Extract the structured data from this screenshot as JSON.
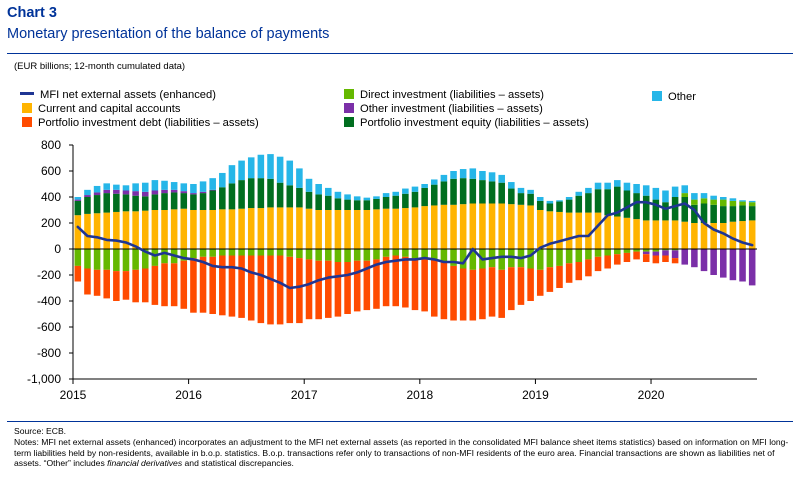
{
  "header": {
    "label": "Chart 3",
    "title": "Monetary presentation of the balance of payments",
    "unit_note": "(EUR billions; 12-month cumulated data)"
  },
  "legend": {
    "line": "MFI net external assets (enhanced)",
    "current": "Current and capital accounts",
    "portdebt": "Portfolio investment debt (liabilities – assets)",
    "direct": "Direct investment (liabilities – assets)",
    "otherinv": "Other investment (liabilities – assets)",
    "porteq": "Portfolio investment equity (liabilities – assets)",
    "other": "Other"
  },
  "footer": {
    "source": "Source: ECB.",
    "notes_1": "Notes: MFI net external assets (enhanced) incorporates an adjustment to the MFI net external assets (as reported in the consolidated MFI balance sheet items statistics) based on information on MFI long-term liabilities held by non-residents, available in b.o.p. statistics. B.o.p. transactions refer only to transactions of non-MFI residents of the euro area. Financial transactions are shown as liabilities net of assets. “Other” includes ",
    "notes_em": "financial derivatives",
    "notes_2": " and statistical discrepancies."
  },
  "colors": {
    "line": "#1f3593",
    "current": "#ffb400",
    "portdebt": "#ff4b00",
    "direct": "#65b800",
    "otherinv": "#7b2fa8",
    "porteq": "#006e1f",
    "other": "#26b6e8"
  },
  "chart_data": {
    "type": "bar",
    "stacked": true,
    "ylim": [
      -1000,
      800
    ],
    "yticks": [
      -1000,
      -800,
      -600,
      -400,
      -200,
      0,
      200,
      400,
      600,
      800
    ],
    "ytick_labels": [
      "-1,000",
      "-800",
      "-600",
      "-400",
      "-200",
      "0",
      "200",
      "400",
      "600",
      "800"
    ],
    "xtick_labels": [
      "2015",
      "2016",
      "2017",
      "2018",
      "2019",
      "2020"
    ],
    "months": [
      "2015-01",
      "2015-02",
      "2015-03",
      "2015-04",
      "2015-05",
      "2015-06",
      "2015-07",
      "2015-08",
      "2015-09",
      "2015-10",
      "2015-11",
      "2015-12",
      "2016-01",
      "2016-02",
      "2016-03",
      "2016-04",
      "2016-05",
      "2016-06",
      "2016-07",
      "2016-08",
      "2016-09",
      "2016-10",
      "2016-11",
      "2016-12",
      "2017-01",
      "2017-02",
      "2017-03",
      "2017-04",
      "2017-05",
      "2017-06",
      "2017-07",
      "2017-08",
      "2017-09",
      "2017-10",
      "2017-11",
      "2017-12",
      "2018-01",
      "2018-02",
      "2018-03",
      "2018-04",
      "2018-05",
      "2018-06",
      "2018-07",
      "2018-08",
      "2018-09",
      "2018-10",
      "2018-11",
      "2018-12",
      "2019-01",
      "2019-02",
      "2019-03",
      "2019-04",
      "2019-05",
      "2019-06",
      "2019-07",
      "2019-08",
      "2019-09",
      "2019-10",
      "2019-11",
      "2019-12",
      "2020-01",
      "2020-02",
      "2020-03",
      "2020-04",
      "2020-05",
      "2020-06",
      "2020-07",
      "2020-08",
      "2020-09",
      "2020-10",
      "2020-11"
    ],
    "series": [
      {
        "name": "Current and capital accounts",
        "key": "current",
        "values": [
          260,
          270,
          275,
          280,
          285,
          290,
          290,
          295,
          300,
          300,
          305,
          310,
          300,
          300,
          300,
          305,
          305,
          310,
          315,
          315,
          320,
          320,
          320,
          320,
          310,
          300,
          300,
          300,
          300,
          300,
          300,
          305,
          310,
          310,
          315,
          320,
          330,
          335,
          340,
          340,
          345,
          350,
          350,
          350,
          350,
          345,
          340,
          335,
          300,
          290,
          285,
          280,
          280,
          280,
          280,
          260,
          250,
          240,
          230,
          220,
          220,
          220,
          220,
          210,
          200,
          200,
          200,
          200,
          210,
          215,
          220
        ]
      },
      {
        "name": "Portfolio investment equity (liabilities – assets)",
        "key": "porteq",
        "values": [
          110,
          130,
          140,
          150,
          140,
          130,
          120,
          110,
          120,
          130,
          130,
          120,
          120,
          130,
          150,
          170,
          200,
          220,
          230,
          230,
          220,
          190,
          170,
          150,
          130,
          120,
          110,
          90,
          80,
          75,
          75,
          80,
          90,
          100,
          110,
          120,
          140,
          160,
          180,
          200,
          200,
          190,
          180,
          170,
          160,
          120,
          90,
          90,
          70,
          60,
          80,
          100,
          130,
          150,
          180,
          200,
          230,
          210,
          200,
          190,
          160,
          140,
          180,
          190,
          140,
          150,
          140,
          130,
          120,
          120,
          110
        ]
      },
      {
        "name": "Direct investment (liabilities – assets)",
        "key": "direct",
        "values": [
          -130,
          -150,
          -160,
          -160,
          -170,
          -170,
          -160,
          -150,
          -130,
          -110,
          -110,
          -90,
          -70,
          -60,
          -60,
          -50,
          -50,
          -50,
          -50,
          -50,
          -50,
          -50,
          -60,
          -70,
          -80,
          -90,
          -90,
          -100,
          -100,
          -90,
          -90,
          -80,
          -60,
          -50,
          -60,
          -70,
          -70,
          -80,
          -100,
          -130,
          -150,
          -160,
          -150,
          -140,
          -160,
          -140,
          -140,
          -150,
          -160,
          -140,
          -130,
          -110,
          -100,
          -80,
          -60,
          -50,
          -40,
          -30,
          -20,
          -20,
          -20,
          -10,
          -10,
          30,
          40,
          40,
          40,
          50,
          40,
          30,
          30
        ]
      },
      {
        "name": "Other investment (liabilities – assets)",
        "key": "otherinv",
        "values": [
          10,
          15,
          20,
          25,
          30,
          30,
          35,
          35,
          30,
          25,
          20,
          15,
          10,
          10,
          5,
          0,
          0,
          0,
          0,
          0,
          0,
          0,
          0,
          0,
          0,
          0,
          0,
          0,
          0,
          0,
          0,
          0,
          0,
          0,
          0,
          0,
          0,
          0,
          0,
          0,
          0,
          0,
          0,
          0,
          0,
          0,
          0,
          0,
          0,
          0,
          0,
          0,
          0,
          0,
          0,
          0,
          0,
          0,
          0,
          -20,
          -30,
          -40,
          -60,
          -120,
          -140,
          -170,
          -200,
          -220,
          -240,
          -250,
          -280
        ]
      },
      {
        "name": "Portfolio investment debt (liabilities – assets)",
        "key": "portdebt",
        "values": [
          -120,
          -200,
          -200,
          -220,
          -230,
          -220,
          -250,
          -260,
          -300,
          -330,
          -330,
          -370,
          -420,
          -430,
          -440,
          -460,
          -470,
          -480,
          -500,
          -520,
          -530,
          -530,
          -510,
          -500,
          -460,
          -450,
          -440,
          -420,
          -400,
          -390,
          -380,
          -380,
          -380,
          -390,
          -390,
          -400,
          -410,
          -440,
          -440,
          -420,
          -400,
          -390,
          -390,
          -380,
          -370,
          -330,
          -290,
          -250,
          -200,
          -190,
          -170,
          -150,
          -140,
          -130,
          -110,
          -100,
          -80,
          -70,
          -60,
          -60,
          -60,
          -50,
          -40,
          0,
          0,
          0,
          0,
          0,
          0,
          0,
          0
        ]
      },
      {
        "name": "Other",
        "key": "other",
        "values": [
          20,
          40,
          50,
          50,
          40,
          40,
          60,
          70,
          80,
          70,
          60,
          60,
          70,
          80,
          90,
          110,
          140,
          150,
          160,
          180,
          190,
          200,
          190,
          150,
          100,
          80,
          60,
          50,
          40,
          30,
          20,
          20,
          30,
          30,
          40,
          40,
          30,
          40,
          50,
          60,
          70,
          80,
          70,
          70,
          60,
          50,
          40,
          30,
          30,
          20,
          10,
          20,
          30,
          40,
          50,
          50,
          50,
          60,
          70,
          80,
          90,
          90,
          80,
          60,
          50,
          40,
          30,
          20,
          20,
          10,
          10
        ]
      }
    ],
    "line_series": {
      "name": "MFI net external assets (enhanced)",
      "values": [
        170,
        100,
        90,
        70,
        65,
        50,
        20,
        -20,
        -50,
        -30,
        -50,
        -70,
        -80,
        -100,
        -130,
        -140,
        -140,
        -150,
        -180,
        -200,
        -230,
        -260,
        -300,
        -290,
        -270,
        -240,
        -220,
        -210,
        -200,
        -180,
        -150,
        -120,
        -100,
        -90,
        -80,
        -80,
        -70,
        -80,
        -100,
        -100,
        -110,
        0,
        -80,
        -70,
        -60,
        -60,
        -70,
        -50,
        10,
        40,
        60,
        80,
        100,
        100,
        180,
        260,
        280,
        320,
        360,
        360,
        340,
        310,
        330,
        350,
        300,
        200,
        150,
        120,
        80,
        50,
        30
      ]
    }
  }
}
